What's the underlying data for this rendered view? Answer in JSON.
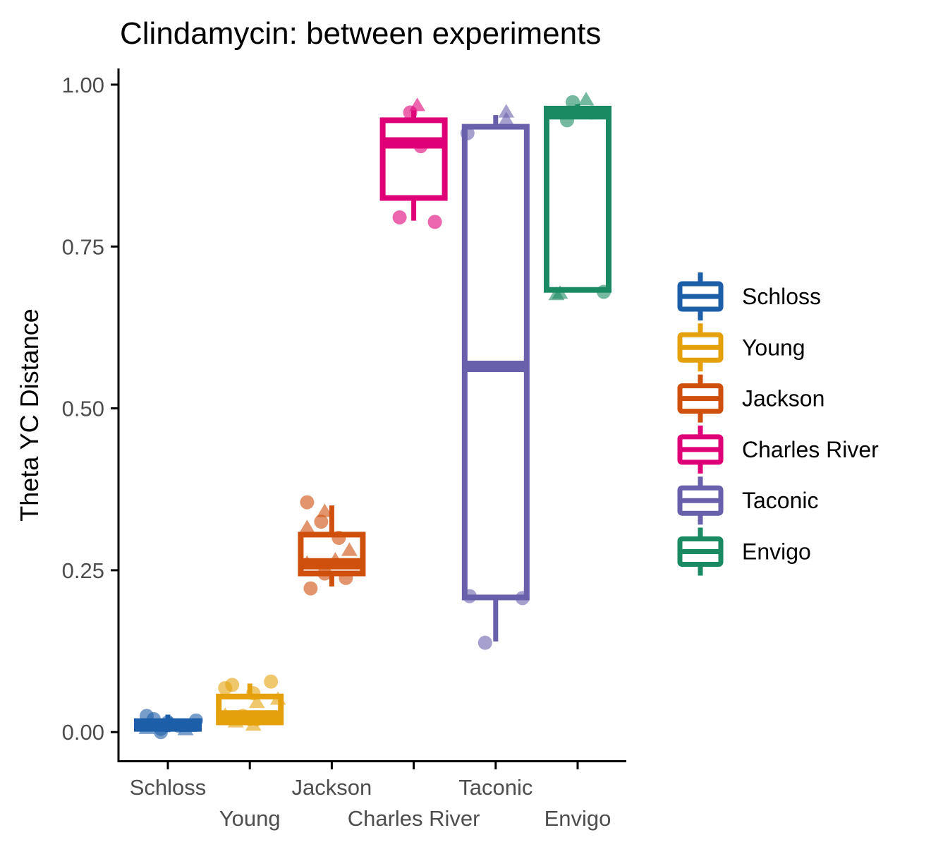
{
  "chart_data": {
    "type": "boxplot",
    "title": "Clindamycin: between experiments",
    "ylabel": "Theta YC Distance",
    "xlabel": "",
    "ylim": [
      -0.045,
      1.025
    ],
    "yticks": [
      "0.00",
      "0.25",
      "0.50",
      "0.75",
      "1.00"
    ],
    "ytick_values": [
      0,
      0.25,
      0.5,
      0.75,
      1.0
    ],
    "grid": false,
    "legend_position": "right",
    "categories": [
      "Schloss",
      "Young",
      "Jackson",
      "Charles River",
      "Taconic",
      "Envigo"
    ],
    "series": [
      {
        "name": "Schloss",
        "color": "#1c5ea7",
        "box": {
          "min": 0.0,
          "q1": 0.005,
          "median": 0.01,
          "q3": 0.017,
          "max": 0.027
        },
        "points": [
          {
            "dx": -0.3,
            "y": 0.025,
            "shape": "circle"
          },
          {
            "dx": -0.2,
            "y": 0.02,
            "shape": "circle"
          },
          {
            "dx": -0.1,
            "y": 0.005,
            "shape": "circle"
          },
          {
            "dx": 0.0,
            "y": 0.015,
            "shape": "circle"
          },
          {
            "dx": 0.15,
            "y": 0.01,
            "shape": "circle"
          },
          {
            "dx": 0.4,
            "y": 0.018,
            "shape": "circle"
          },
          {
            "dx": -0.1,
            "y": 0.0,
            "shape": "circle"
          },
          {
            "dx": -0.3,
            "y": 0.005,
            "shape": "triangle"
          },
          {
            "dx": 0.05,
            "y": 0.012,
            "shape": "triangle"
          },
          {
            "dx": 0.3,
            "y": 0.008,
            "shape": "triangle"
          },
          {
            "dx": 0.25,
            "y": 0.003,
            "shape": "triangle"
          }
        ]
      },
      {
        "name": "Young",
        "color": "#e4a10b",
        "box": {
          "min": 0.01,
          "q1": 0.015,
          "median": 0.025,
          "q3": 0.055,
          "max": 0.075
        },
        "points": [
          {
            "dx": -0.35,
            "y": 0.068,
            "shape": "circle"
          },
          {
            "dx": -0.25,
            "y": 0.073,
            "shape": "circle"
          },
          {
            "dx": 0.3,
            "y": 0.078,
            "shape": "circle"
          },
          {
            "dx": 0.05,
            "y": 0.06,
            "shape": "circle"
          },
          {
            "dx": -0.1,
            "y": 0.025,
            "shape": "circle"
          },
          {
            "dx": 0.1,
            "y": 0.02,
            "shape": "circle"
          },
          {
            "dx": -0.35,
            "y": 0.025,
            "shape": "triangle"
          },
          {
            "dx": 0.1,
            "y": 0.045,
            "shape": "triangle"
          },
          {
            "dx": 0.4,
            "y": 0.05,
            "shape": "triangle"
          },
          {
            "dx": -0.2,
            "y": 0.015,
            "shape": "triangle"
          },
          {
            "dx": 0.05,
            "y": 0.01,
            "shape": "triangle"
          }
        ]
      },
      {
        "name": "Jackson",
        "color": "#cf4f0c",
        "box": {
          "min": 0.225,
          "q1": 0.245,
          "median": 0.26,
          "q3": 0.305,
          "max": 0.35
        },
        "points": [
          {
            "dx": -0.35,
            "y": 0.355,
            "shape": "circle"
          },
          {
            "dx": -0.15,
            "y": 0.325,
            "shape": "circle"
          },
          {
            "dx": 0.1,
            "y": 0.3,
            "shape": "circle"
          },
          {
            "dx": -0.3,
            "y": 0.222,
            "shape": "circle"
          },
          {
            "dx": -0.1,
            "y": 0.245,
            "shape": "circle"
          },
          {
            "dx": 0.2,
            "y": 0.238,
            "shape": "circle"
          },
          {
            "dx": 0.25,
            "y": 0.28,
            "shape": "triangle"
          },
          {
            "dx": -0.1,
            "y": 0.34,
            "shape": "triangle"
          },
          {
            "dx": -0.35,
            "y": 0.26,
            "shape": "triangle"
          },
          {
            "dx": -0.35,
            "y": 0.315,
            "shape": "triangle"
          },
          {
            "dx": 0.05,
            "y": 0.265,
            "shape": "triangle"
          }
        ]
      },
      {
        "name": "Charles River",
        "color": "#df0078",
        "box": {
          "min": 0.79,
          "q1": 0.825,
          "median": 0.91,
          "q3": 0.945,
          "max": 0.96
        },
        "points": [
          {
            "dx": -0.05,
            "y": 0.957,
            "shape": "circle"
          },
          {
            "dx": 0.1,
            "y": 0.905,
            "shape": "circle"
          },
          {
            "dx": -0.2,
            "y": 0.795,
            "shape": "circle"
          },
          {
            "dx": 0.3,
            "y": 0.788,
            "shape": "circle"
          },
          {
            "dx": 0.05,
            "y": 0.967,
            "shape": "triangle"
          }
        ]
      },
      {
        "name": "Taconic",
        "color": "#6960ab",
        "box": {
          "min": 0.14,
          "q1": 0.208,
          "median": 0.565,
          "q3": 0.935,
          "max": 0.953
        },
        "points": [
          {
            "dx": -0.4,
            "y": 0.925,
            "shape": "circle"
          },
          {
            "dx": -0.37,
            "y": 0.21,
            "shape": "circle"
          },
          {
            "dx": 0.38,
            "y": 0.207,
            "shape": "circle"
          },
          {
            "dx": -0.15,
            "y": 0.138,
            "shape": "circle"
          },
          {
            "dx": 0.15,
            "y": 0.957,
            "shape": "triangle"
          },
          {
            "dx": 0.15,
            "y": 0.945,
            "shape": "triangle"
          }
        ]
      },
      {
        "name": "Envigo",
        "color": "#1a8a63",
        "box": {
          "min": 0.68,
          "q1": 0.683,
          "median": 0.955,
          "q3": 0.963,
          "max": 0.97
        },
        "points": [
          {
            "dx": -0.07,
            "y": 0.973,
            "shape": "circle"
          },
          {
            "dx": -0.15,
            "y": 0.945,
            "shape": "circle"
          },
          {
            "dx": 0.37,
            "y": 0.68,
            "shape": "circle"
          },
          {
            "dx": 0.2,
            "y": 0.957,
            "shape": "circle"
          },
          {
            "dx": 0.12,
            "y": 0.976,
            "shape": "triangle"
          },
          {
            "dx": -0.25,
            "y": 0.677,
            "shape": "triangle"
          },
          {
            "dx": -0.3,
            "y": 0.675,
            "shape": "triangle"
          }
        ]
      }
    ]
  }
}
